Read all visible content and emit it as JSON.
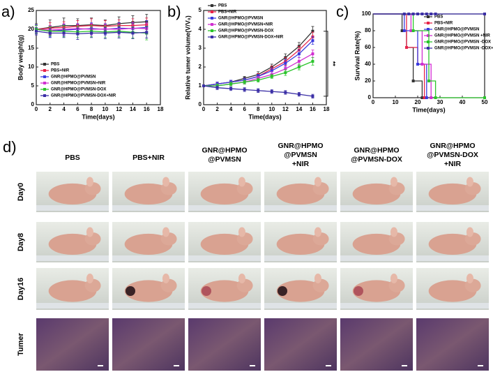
{
  "chart_data": [
    {
      "type": "line",
      "label": "a)",
      "xlabel": "Time(days)",
      "ylabel": "Body weight(g)",
      "xlim": [
        0,
        18
      ],
      "xticks": [
        0,
        2,
        4,
        6,
        8,
        10,
        12,
        14,
        16,
        18
      ],
      "ylim": [
        0,
        25
      ],
      "yticks": [
        0,
        5,
        10,
        15,
        20,
        25
      ],
      "legend": "lower left",
      "x": [
        0,
        2,
        4,
        6,
        8,
        10,
        12,
        14,
        16
      ],
      "series": [
        {
          "name": "PBS",
          "color": "#333333",
          "values": [
            20,
            20.5,
            21,
            21,
            21.2,
            21,
            21.5,
            21.8,
            22
          ],
          "errors": [
            1.5,
            2,
            2,
            1.8,
            1.8,
            1.5,
            1.8,
            1.8,
            2
          ]
        },
        {
          "name": "PBS+NIR",
          "color": "#e8234a",
          "values": [
            20,
            20.3,
            20.5,
            20.8,
            21,
            20.8,
            21,
            21,
            21.2
          ],
          "errors": [
            1.2,
            1.5,
            1.5,
            1.5,
            1.8,
            1.5,
            1.5,
            1.8,
            1.8
          ]
        },
        {
          "name": "GNR@HPMO@PVMSN",
          "color": "#3a3adf",
          "values": [
            20,
            19.5,
            19.8,
            20,
            20.2,
            20,
            20.3,
            20.2,
            20.5
          ],
          "errors": [
            1.2,
            1.5,
            1.5,
            1.5,
            1.5,
            1.5,
            1.5,
            1.5,
            1.8
          ]
        },
        {
          "name": "GNR@HPMO@PVMSN+NIR",
          "color": "#d12fd1",
          "values": [
            20,
            19.8,
            20,
            20.2,
            20,
            20.1,
            20,
            20.3,
            20.2
          ],
          "errors": [
            1,
            1.2,
            1.5,
            1.2,
            1.5,
            1.2,
            1.5,
            1.5,
            1.5
          ]
        },
        {
          "name": "GNR@HPMO@PVMSN-DOX",
          "color": "#2bc42b",
          "values": [
            20,
            19.5,
            19.5,
            19.3,
            19.5,
            19.3,
            19.5,
            19.2,
            19
          ],
          "errors": [
            1,
            1.2,
            1.5,
            1.5,
            1.5,
            1.5,
            1.5,
            1.5,
            1.8
          ]
        },
        {
          "name": "GNR@HPMO@PVMSN-DOX+NIR",
          "color": "#3b2fa6",
          "values": [
            19.5,
            19,
            19,
            18.8,
            19,
            19,
            19.2,
            19,
            19.2
          ],
          "errors": [
            1,
            1.2,
            1.2,
            1.5,
            1.2,
            1.5,
            1.5,
            1.5,
            1.5
          ]
        }
      ]
    },
    {
      "type": "line",
      "label": "b)",
      "xlabel": "Time(days)",
      "ylabel": "Relative tumer volume(V/V₀)",
      "annotation": "**",
      "xlim": [
        0,
        18
      ],
      "xticks": [
        0,
        2,
        4,
        6,
        8,
        10,
        12,
        14,
        16,
        18
      ],
      "ylim": [
        0,
        5
      ],
      "yticks": [
        0,
        1,
        2,
        3,
        4,
        5
      ],
      "legend": "upper left",
      "x": [
        0,
        2,
        4,
        6,
        8,
        10,
        12,
        14,
        16
      ],
      "series": [
        {
          "name": "PBS",
          "color": "#333333",
          "values": [
            1,
            1.1,
            1.2,
            1.4,
            1.6,
            2.0,
            2.5,
            3.1,
            3.9
          ],
          "errors": [
            0.05,
            0.1,
            0.1,
            0.1,
            0.15,
            0.15,
            0.2,
            0.2,
            0.25
          ]
        },
        {
          "name": "PBS+NIR",
          "color": "#e8234a",
          "values": [
            1,
            1.1,
            1.2,
            1.3,
            1.5,
            1.9,
            2.3,
            2.9,
            3.6
          ],
          "errors": [
            0.05,
            0.1,
            0.1,
            0.1,
            0.15,
            0.15,
            0.2,
            0.2,
            0.25
          ]
        },
        {
          "name": "GNR@HPMO@PVMSN",
          "color": "#3a3adf",
          "values": [
            1,
            1.1,
            1.2,
            1.3,
            1.5,
            1.8,
            2.2,
            2.7,
            3.4
          ],
          "errors": [
            0.05,
            0.1,
            0.1,
            0.1,
            0.1,
            0.15,
            0.2,
            0.2,
            0.2
          ]
        },
        {
          "name": "GNR@HPMO@PVMSN+NIR",
          "color": "#d12fd1",
          "values": [
            1,
            1.0,
            1.1,
            1.2,
            1.4,
            1.6,
            1.9,
            2.3,
            2.7
          ],
          "errors": [
            0.05,
            0.1,
            0.1,
            0.1,
            0.1,
            0.15,
            0.15,
            0.2,
            0.2
          ]
        },
        {
          "name": "GNR@HPMO@PVMSN-DOX",
          "color": "#2bc42b",
          "values": [
            1,
            1.0,
            1.1,
            1.2,
            1.3,
            1.5,
            1.7,
            2.0,
            2.3
          ],
          "errors": [
            0.05,
            0.1,
            0.1,
            0.1,
            0.1,
            0.1,
            0.15,
            0.15,
            0.2
          ]
        },
        {
          "name": "GNR@HPMO@PVMSN-DOX+NIR",
          "color": "#3b2fa6",
          "values": [
            1,
            0.9,
            0.85,
            0.8,
            0.75,
            0.7,
            0.65,
            0.55,
            0.45
          ],
          "errors": [
            0.05,
            0.1,
            0.1,
            0.1,
            0.1,
            0.1,
            0.1,
            0.1,
            0.1
          ]
        }
      ]
    },
    {
      "type": "step",
      "label": "c)",
      "xlabel": "Time(days)",
      "ylabel": "Survival Rate(%)",
      "xlim": [
        0,
        50
      ],
      "xticks": [
        0,
        10,
        20,
        30,
        40,
        50
      ],
      "ylim": [
        0,
        100
      ],
      "yticks": [
        0,
        20,
        40,
        60,
        80,
        100
      ],
      "legend": "upper right",
      "series": [
        {
          "name": "PBS",
          "color": "#333333",
          "x": [
            0,
            13,
            15,
            18,
            22
          ],
          "values": [
            100,
            80,
            60,
            20,
            0
          ]
        },
        {
          "name": "PBS+NIR",
          "color": "#e8234a",
          "x": [
            0,
            15,
            20,
            23
          ],
          "values": [
            100,
            60,
            40,
            0
          ]
        },
        {
          "name": "GNR@HPMO@PVMSN",
          "color": "#3a3adf",
          "x": [
            0,
            14,
            20,
            24
          ],
          "values": [
            100,
            80,
            40,
            0
          ]
        },
        {
          "name": "GNR@HPMO@PVMSN +NIR",
          "color": "#d12fd1",
          "x": [
            0,
            17,
            22,
            26
          ],
          "values": [
            100,
            80,
            40,
            0
          ]
        },
        {
          "name": "GNR@HPMO@PVMSN -DOX",
          "color": "#2bc42b",
          "x": [
            0,
            18,
            25,
            28,
            50
          ],
          "values": [
            100,
            80,
            20,
            0,
            0
          ]
        },
        {
          "name": "GNR@HPMO@PVMSN -DOX+NIR",
          "color": "#3b2fa6",
          "x": [
            0,
            14,
            16,
            18,
            20,
            22,
            24,
            26,
            28,
            50
          ],
          "values": [
            100,
            100,
            100,
            100,
            100,
            100,
            100,
            100,
            100,
            100
          ]
        }
      ]
    }
  ],
  "panel_d": {
    "label": "d)",
    "columns": [
      [
        "PBS"
      ],
      [
        "PBS+NIR"
      ],
      [
        "GNR@HPMO",
        "@PVMSN"
      ],
      [
        "GNR@HPMO",
        "@PVMSN",
        "+NIR"
      ],
      [
        "GNR@HPMO",
        "@PVMSN-DOX"
      ],
      [
        "GNR@HPMO",
        "@PVMSN-DOX",
        "+NIR"
      ]
    ],
    "rows": [
      "Day0",
      "Day8",
      "Day16",
      "Tumer"
    ]
  }
}
